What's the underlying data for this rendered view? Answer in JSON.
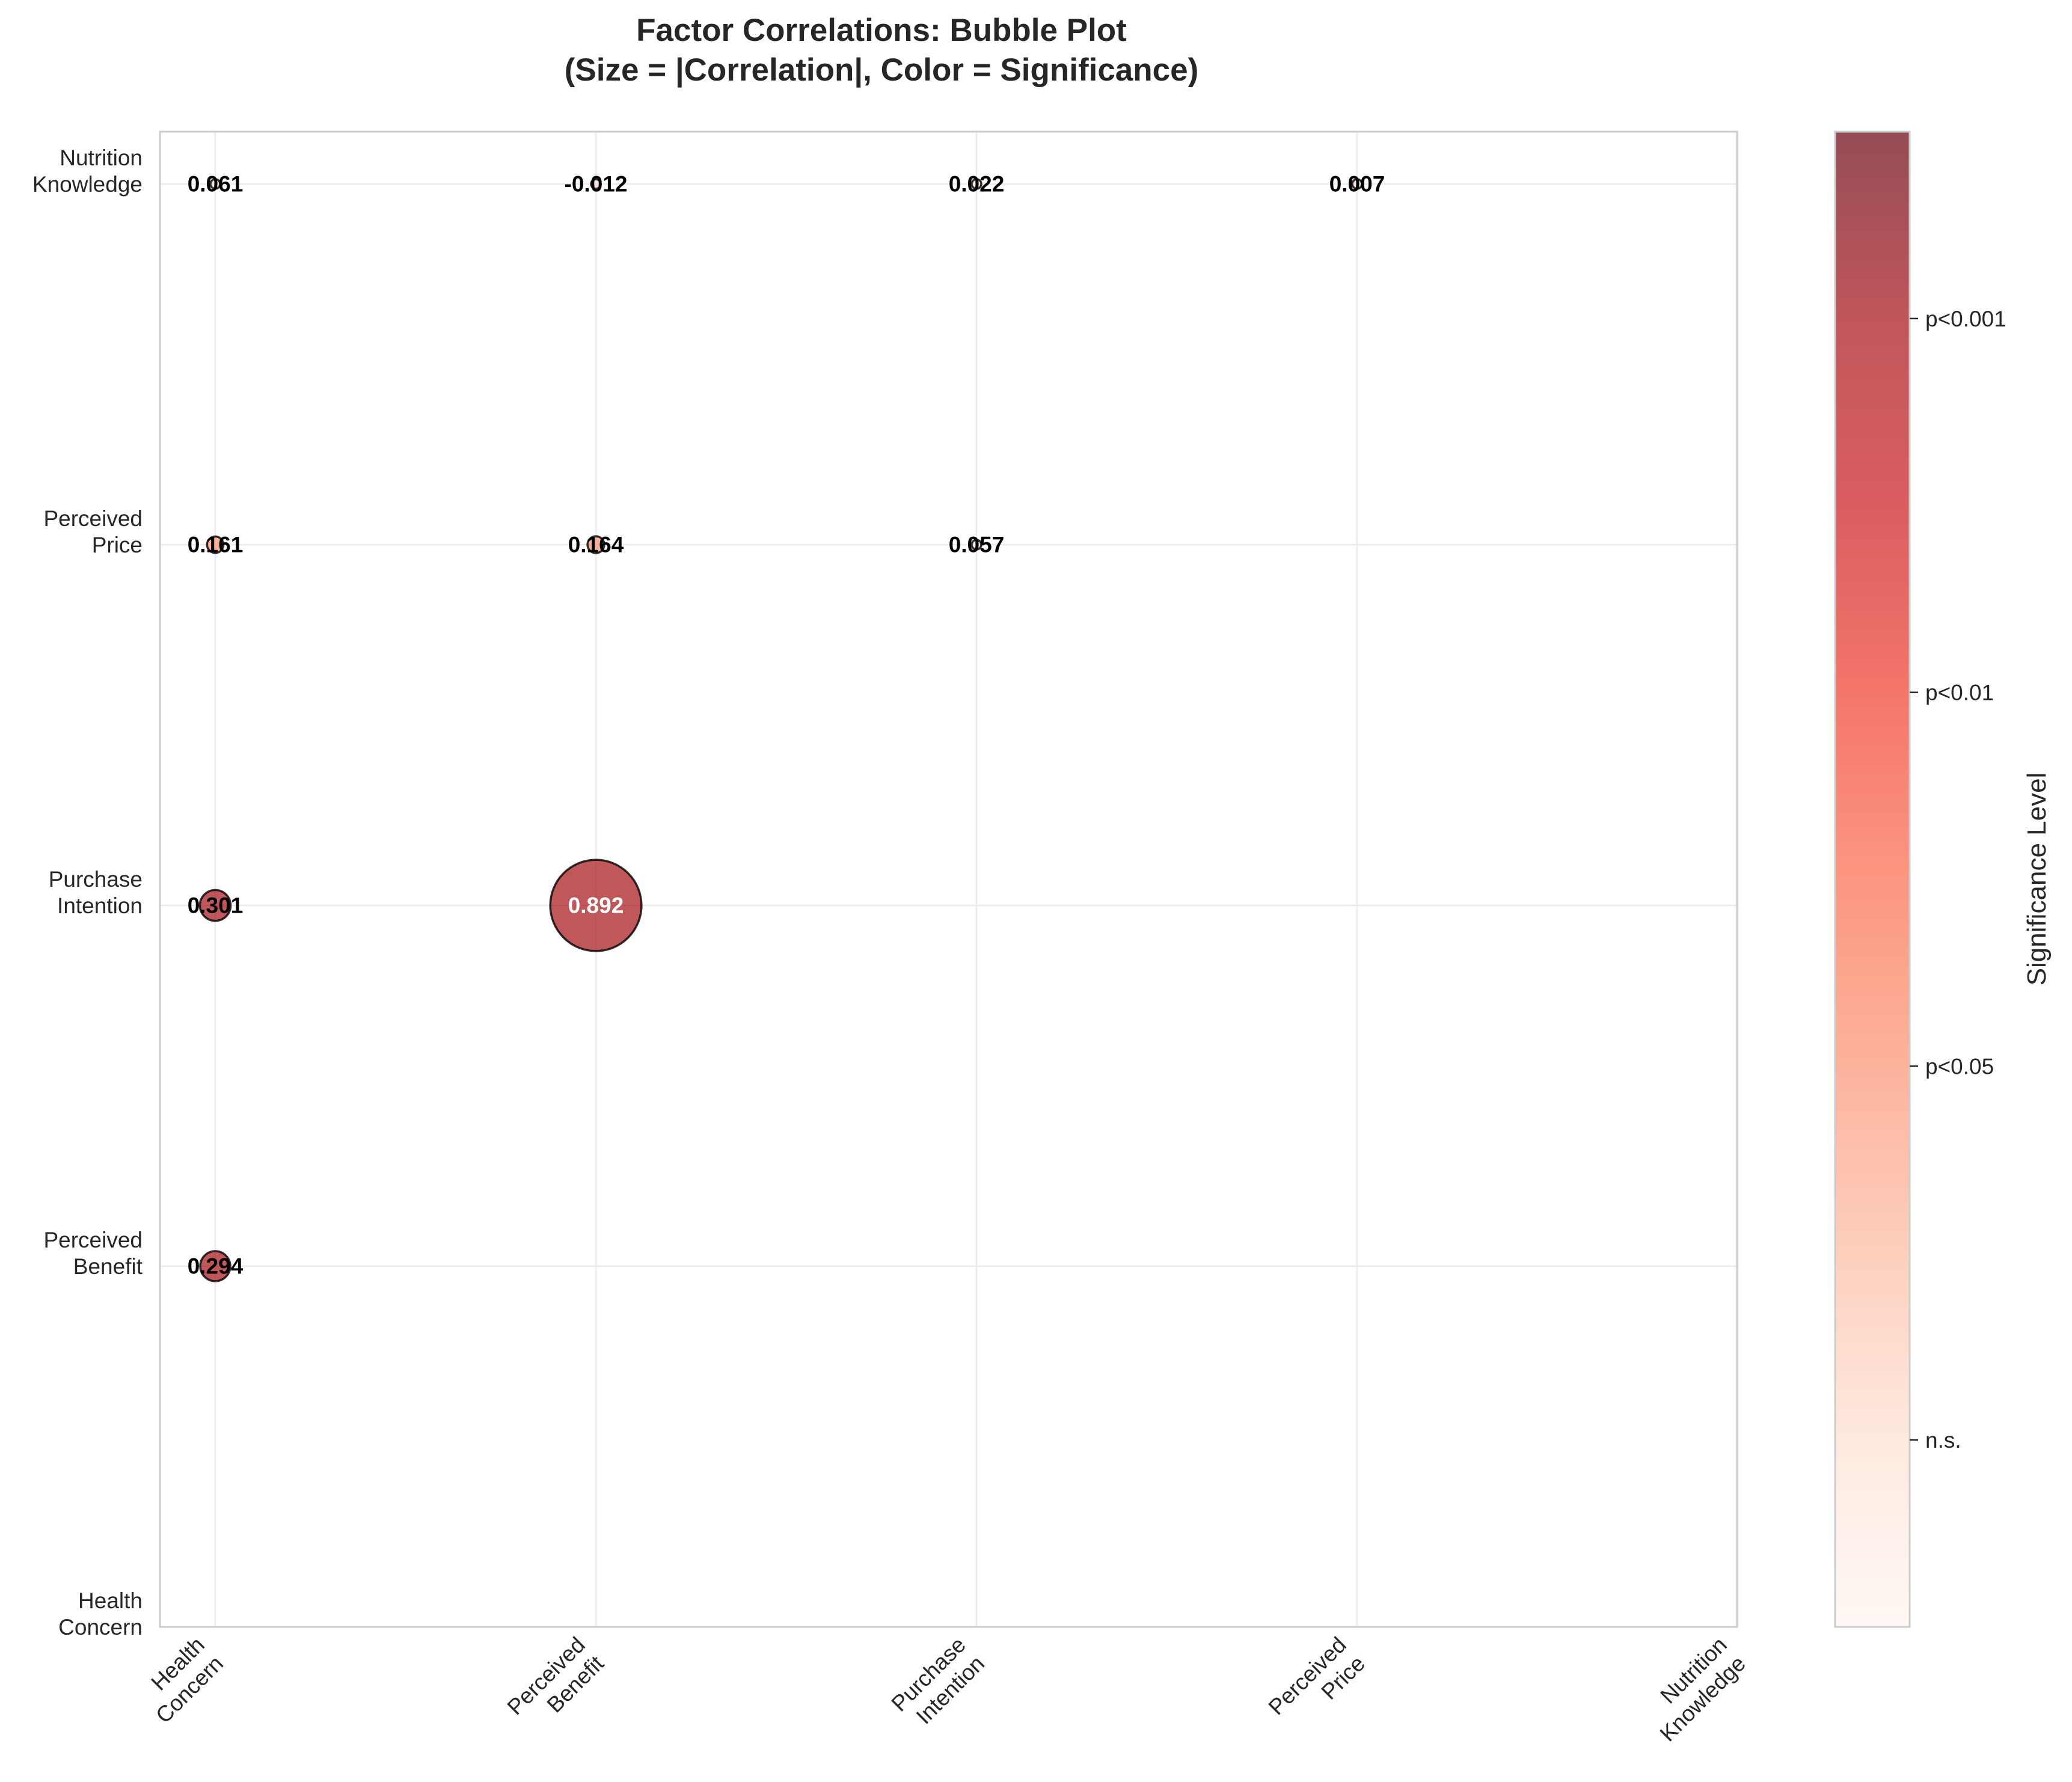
{
  "chart_data": {
    "type": "scatter",
    "subtype": "bubble",
    "title": "Factor Correlations: Bubble Plot",
    "subtitle": "(Size = |Correlation|, Color = Significance)",
    "x_categories": [
      "Health\nConcern",
      "Perceived\nBenefit",
      "Purchase\nIntention",
      "Perceived\nPrice",
      "Nutrition\nKnowledge"
    ],
    "y_categories": [
      "Health\nConcern",
      "Perceived\nBenefit",
      "Purchase\nIntention",
      "Perceived\nPrice",
      "Nutrition\nKnowledge"
    ],
    "grid": true,
    "points": [
      {
        "x": 0,
        "y": 1,
        "label": "0.294",
        "r": 0.294,
        "sig": 3
      },
      {
        "x": 0,
        "y": 2,
        "label": "0.301",
        "r": 0.301,
        "sig": 3
      },
      {
        "x": 0,
        "y": 3,
        "label": "0.161",
        "r": 0.161,
        "sig": 1
      },
      {
        "x": 0,
        "y": 4,
        "label": "0.061",
        "r": 0.061,
        "sig": 0
      },
      {
        "x": 1,
        "y": 2,
        "label": "0.892",
        "r": 0.892,
        "sig": 3
      },
      {
        "x": 1,
        "y": 3,
        "label": "0.164",
        "r": 0.164,
        "sig": 1
      },
      {
        "x": 1,
        "y": 4,
        "label": "-0.012",
        "r": -0.012,
        "sig": 0
      },
      {
        "x": 2,
        "y": 3,
        "label": "0.057",
        "r": 0.057,
        "sig": 0
      },
      {
        "x": 2,
        "y": 4,
        "label": "0.022",
        "r": 0.022,
        "sig": 0
      },
      {
        "x": 3,
        "y": 4,
        "label": "0.007",
        "r": 0.007,
        "sig": 0
      }
    ],
    "colorbar": {
      "label": "Significance Level",
      "ticks": [
        "n.s.",
        "p<0.05",
        "p<0.01",
        "p<0.001"
      ],
      "tick_values": [
        0,
        1,
        2,
        3
      ],
      "range": [
        -0.5,
        3.5
      ],
      "colormap": "Reds",
      "alpha": 0.7
    }
  }
}
